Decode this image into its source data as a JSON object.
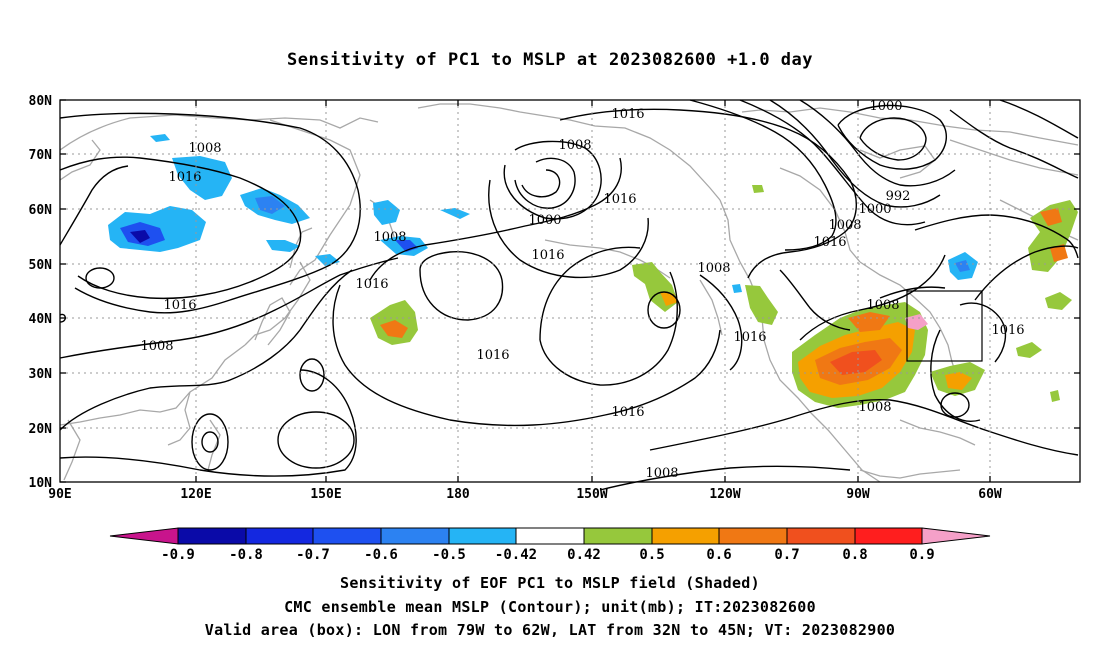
{
  "title": "Sensitivity of PC1 to MSLP at 2023082600 +1.0 day",
  "map": {
    "lon_range": [
      "90E",
      "60W"
    ],
    "lat_range": [
      "10N",
      "80N"
    ],
    "lat_labels": [
      "80N",
      "70N",
      "60N",
      "50N",
      "40N",
      "30N",
      "20N",
      "10N"
    ],
    "lon_labels": [
      "90E",
      "120E",
      "150E",
      "180",
      "150W",
      "120W",
      "90W",
      "60W"
    ],
    "contour_labels": [
      "1016",
      "1000",
      "1008",
      "1008",
      "1016",
      "1016",
      "992",
      "1000",
      "1008",
      "1016",
      "1000",
      "1008",
      "1016",
      "1008",
      "1016",
      "1016",
      "1008",
      "1016",
      "1016",
      "1008",
      "1016",
      "1008",
      "1016",
      "1008"
    ],
    "contour_color": "#000000",
    "coastline_color": "#a8a8a8",
    "valid_box": {
      "lon_west": "79W",
      "lon_east": "62W",
      "lat_south": "32N",
      "lat_north": "45N"
    }
  },
  "colorbar": {
    "labels": [
      "-0.9",
      "-0.8",
      "-0.7",
      "-0.6",
      "-0.5",
      "-0.42",
      "0.42",
      "0.5",
      "0.6",
      "0.7",
      "0.8",
      "0.9"
    ],
    "colors": [
      "#0a0aa8",
      "#1428e0",
      "#1e50f0",
      "#2c82f2",
      "#25b4f5",
      "#ffffff",
      "#96c83c",
      "#f5a000",
      "#f07814",
      "#f0501e",
      "#ff1e1e"
    ],
    "min_triangle_color": "#c8148c",
    "max_triangle_color": "#f5a0c8"
  },
  "captions": {
    "line1": "Sensitivity of EOF PC1 to MSLP field (Shaded)",
    "line2": "CMC ensemble mean MSLP (Contour); unit(mb); IT:2023082600",
    "line3": "Valid area (box): LON from 79W to 62W, LAT from 32N to 45N; VT: 2023082900"
  }
}
